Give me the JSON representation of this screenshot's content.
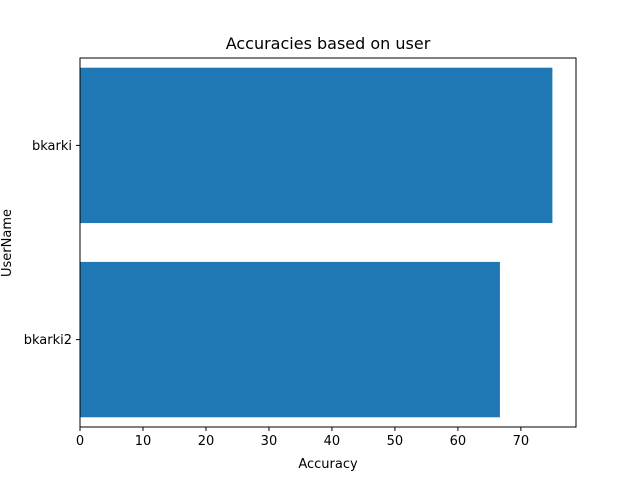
{
  "chart_data": {
    "type": "bar",
    "orientation": "horizontal",
    "title": "Accuracies based on user",
    "xlabel": "Accuracy",
    "ylabel": "UserName",
    "categories": [
      "bkarki",
      "bkarki2"
    ],
    "values": [
      75,
      66.67
    ],
    "xlim": [
      0,
      78.75
    ],
    "xticks": [
      0,
      10,
      20,
      30,
      40,
      50,
      60,
      70
    ],
    "bar_color": "#1f77b4",
    "grid": false,
    "legend": false
  }
}
